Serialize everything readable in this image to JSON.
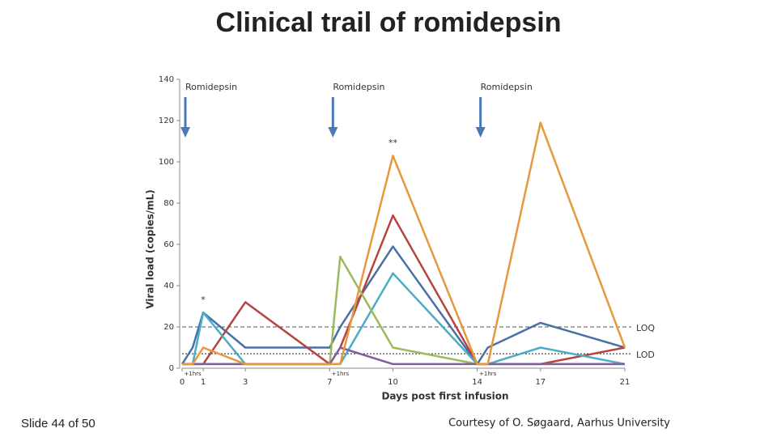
{
  "chart_data": {
    "type": "line",
    "title": "Clinical trail of romidepsin",
    "x_label": "Days post first infusion",
    "y_label": "Viral load (copies/mL)",
    "xlim": [
      0,
      21
    ],
    "xticks": [
      0,
      1,
      3,
      7,
      10,
      14,
      17,
      21
    ],
    "ylim": [
      0,
      140
    ],
    "yticks": [
      0,
      20,
      40,
      60,
      80,
      100,
      120,
      140
    ],
    "x": [
      0,
      0.5,
      1,
      3,
      7,
      7.5,
      10,
      14,
      14.5,
      17,
      21
    ],
    "series": [
      {
        "color": "#4a6fa5",
        "values": [
          2,
          10,
          27,
          10,
          10,
          20,
          59,
          2,
          10,
          22,
          10
        ]
      },
      {
        "color": "#b5443f",
        "values": [
          2,
          2,
          2,
          32,
          2,
          10,
          74,
          2,
          2,
          2,
          10
        ]
      },
      {
        "color": "#4aacc5",
        "values": [
          2,
          2,
          27,
          2,
          2,
          2,
          46,
          2,
          2,
          10,
          2
        ]
      },
      {
        "color": "#9bbb59",
        "values": [
          2,
          2,
          2,
          2,
          2,
          54,
          10,
          2,
          2,
          2,
          2
        ]
      },
      {
        "color": "#7f5fa0",
        "values": [
          2,
          2,
          2,
          2,
          2,
          10,
          2,
          2,
          2,
          2,
          2
        ]
      },
      {
        "color": "#e8973c",
        "values": [
          2,
          2,
          10,
          2,
          2,
          2,
          103,
          2,
          2,
          119,
          10
        ]
      }
    ],
    "ref_lines": [
      {
        "label": "LOQ",
        "value": 20,
        "color": "#555"
      },
      {
        "label": "LOD",
        "value": 7,
        "color": "#222"
      }
    ],
    "infusions": {
      "label": "Romidepsin",
      "x": [
        0,
        7,
        14
      ],
      "color": "#4a7ab5"
    },
    "hour_marks": {
      "label": "+1hrs",
      "x": [
        0.5,
        7.5,
        14.5
      ]
    },
    "annotations": [
      {
        "text": "*",
        "x": 1,
        "y": 33
      },
      {
        "text": "**",
        "x": 10,
        "y": 109
      }
    ]
  },
  "footer": {
    "slide_number": "Slide 44 of 50",
    "credit": "Courtesy of O. Søgaard, Aarhus University"
  }
}
